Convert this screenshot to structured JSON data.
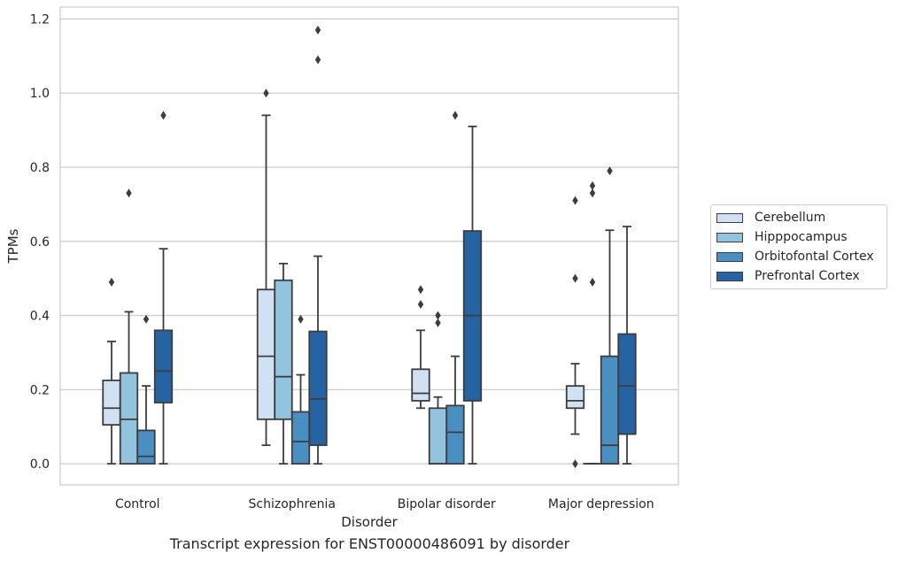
{
  "chart_data": {
    "type": "box",
    "title": "",
    "xlabel": "Disorder",
    "ylabel": "TPMs",
    "caption": "Transcript expression for ENST00000486091 by disorder",
    "ylim": [
      -0.057,
      1.232
    ],
    "yticks": [
      "0.0",
      "0.2",
      "0.4",
      "0.6",
      "0.8",
      "1.0",
      "1.2"
    ],
    "grid": "horizontal",
    "legend_position": "right",
    "categories": [
      "Control",
      "Schizophrenia",
      "Bipolar disorder",
      "Major depression"
    ],
    "series": [
      {
        "name": "Cerebellum",
        "color": "#cfe1f2",
        "boxes": [
          {
            "whislo": 0.0,
            "q1": 0.105,
            "med": 0.15,
            "q3": 0.225,
            "whishi": 0.33,
            "fliers": [
              0.49
            ]
          },
          {
            "whislo": 0.05,
            "q1": 0.12,
            "med": 0.29,
            "q3": 0.47,
            "whishi": 0.94,
            "fliers": [
              1.0
            ]
          },
          {
            "whislo": 0.15,
            "q1": 0.17,
            "med": 0.19,
            "q3": 0.255,
            "whishi": 0.36,
            "fliers": [
              0.43,
              0.47
            ]
          },
          {
            "whislo": 0.08,
            "q1": 0.15,
            "med": 0.17,
            "q3": 0.21,
            "whishi": 0.27,
            "fliers": [
              0.0,
              0.5,
              0.71
            ]
          }
        ]
      },
      {
        "name": "Hipppocampus",
        "color": "#93c4de",
        "boxes": [
          {
            "whislo": 0.0,
            "q1": 0.0,
            "med": 0.12,
            "q3": 0.245,
            "whishi": 0.41,
            "fliers": [
              0.73
            ]
          },
          {
            "whislo": 0.0,
            "q1": 0.12,
            "med": 0.235,
            "q3": 0.495,
            "whishi": 0.54,
            "fliers": []
          },
          {
            "whislo": 0.0,
            "q1": 0.0,
            "med": 0.0,
            "q3": 0.15,
            "whishi": 0.18,
            "fliers": [
              0.38,
              0.4
            ]
          },
          {
            "whislo": 0.0,
            "q1": 0.0,
            "med": 0.0,
            "q3": 0.0,
            "whishi": 0.0,
            "fliers": [
              0.49,
              0.73,
              0.75
            ]
          }
        ]
      },
      {
        "name": "Orbitofontal Cortex",
        "color": "#4a8fc2",
        "boxes": [
          {
            "whislo": 0.0,
            "q1": 0.0,
            "med": 0.02,
            "q3": 0.09,
            "whishi": 0.21,
            "fliers": [
              0.39
            ]
          },
          {
            "whislo": 0.0,
            "q1": 0.0,
            "med": 0.06,
            "q3": 0.14,
            "whishi": 0.24,
            "fliers": [
              0.39
            ]
          },
          {
            "whislo": 0.0,
            "q1": 0.0,
            "med": 0.085,
            "q3": 0.157,
            "whishi": 0.29,
            "fliers": [
              0.94
            ]
          },
          {
            "whislo": 0.0,
            "q1": 0.0,
            "med": 0.05,
            "q3": 0.29,
            "whishi": 0.63,
            "fliers": [
              0.79
            ]
          }
        ]
      },
      {
        "name": "Prefrontal Cortex",
        "color": "#2563a3",
        "boxes": [
          {
            "whislo": 0.0,
            "q1": 0.165,
            "med": 0.25,
            "q3": 0.36,
            "whishi": 0.58,
            "fliers": [
              0.94
            ]
          },
          {
            "whislo": 0.0,
            "q1": 0.05,
            "med": 0.175,
            "q3": 0.357,
            "whishi": 0.56,
            "fliers": [
              1.09,
              1.17
            ]
          },
          {
            "whislo": 0.0,
            "q1": 0.17,
            "med": 0.4,
            "q3": 0.628,
            "whishi": 0.91,
            "fliers": []
          },
          {
            "whislo": 0.0,
            "q1": 0.08,
            "med": 0.21,
            "q3": 0.35,
            "whishi": 0.64,
            "fliers": []
          }
        ]
      }
    ]
  }
}
